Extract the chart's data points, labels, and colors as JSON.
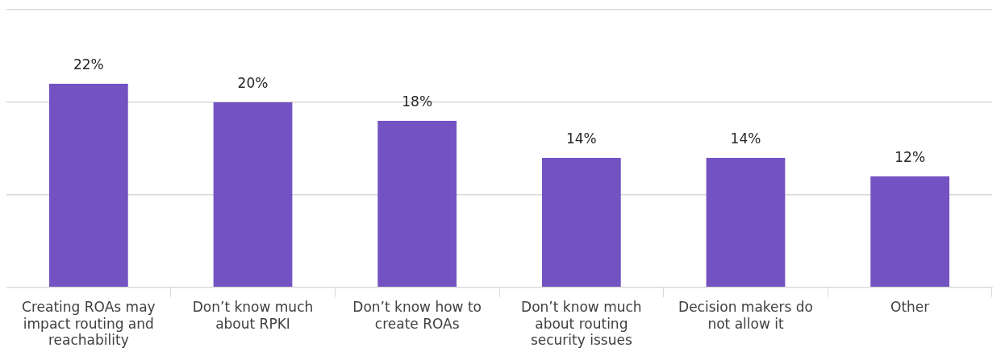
{
  "chart_data": {
    "type": "bar",
    "categories": [
      "Creating ROAs may impact routing and reachability",
      "Don’t know much about RPKI",
      "Don’t know how to create ROAs",
      "Don’t know much about routing security issues",
      "Decision makers do not allow it",
      "Other"
    ],
    "values": [
      22,
      20,
      18,
      14,
      14,
      12
    ],
    "value_labels": [
      "22%",
      "20%",
      "18%",
      "14%",
      "14%",
      "12%"
    ],
    "color": "#7352c2",
    "ylim": [
      0,
      30
    ],
    "yticks": [
      {
        "value": 0,
        "label": null
      },
      {
        "value": 10,
        "label": null
      },
      {
        "value": 20,
        "label": null
      },
      {
        "value": 30,
        "label": null
      }
    ],
    "tick_labels": "x",
    "grid": "y",
    "legend": false
  }
}
